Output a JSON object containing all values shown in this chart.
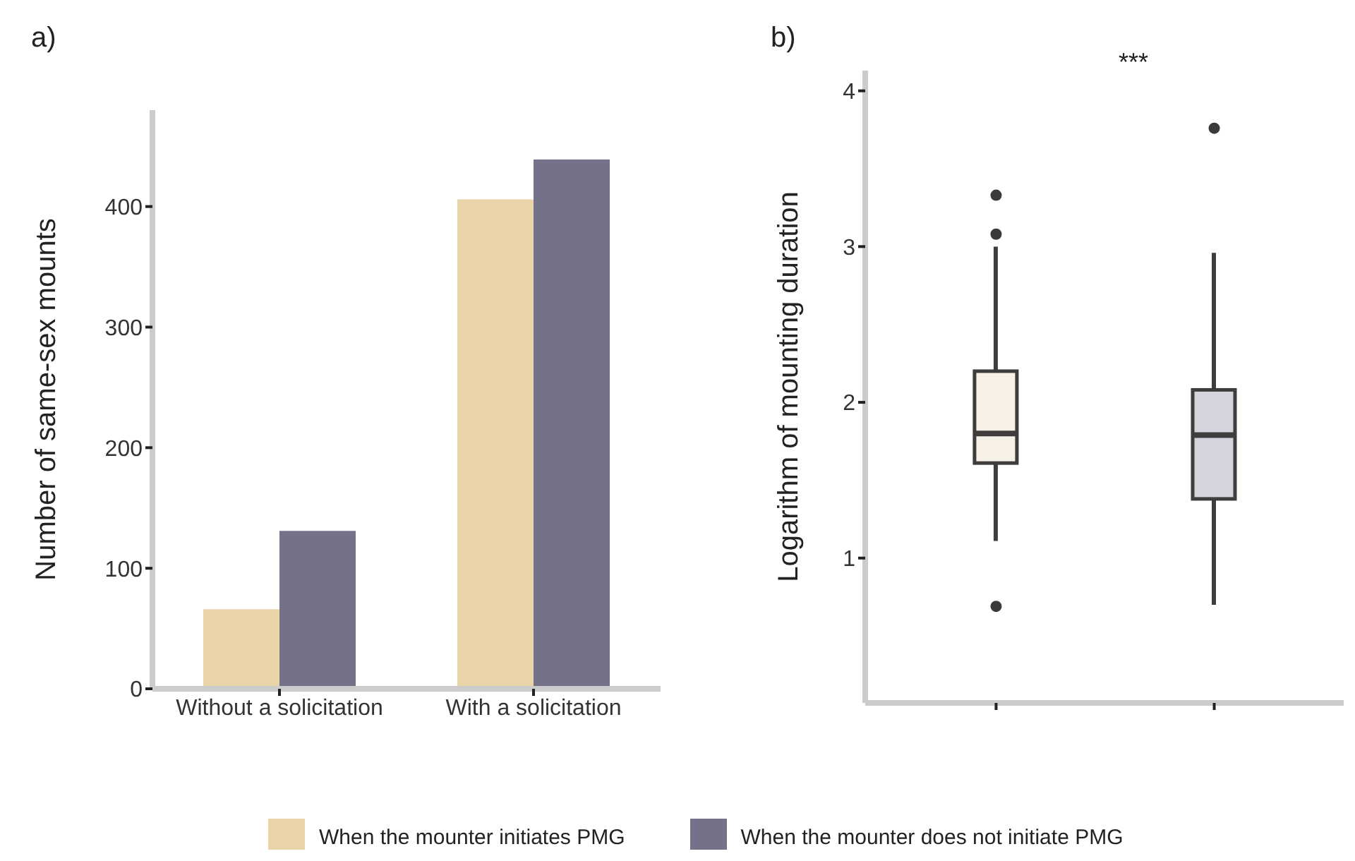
{
  "chart_data": [
    {
      "type": "bar",
      "title": "a)",
      "ylabel": "Number of same-sex mounts",
      "categories": [
        "Without a solicitation",
        "With a solicitation"
      ],
      "series": [
        {
          "name": "When the mounter initiates PMG",
          "color": "#e8d4a8",
          "values": [
            66,
            406
          ]
        },
        {
          "name": "When the mounter does not initiate PMG",
          "color": "#747289",
          "values": [
            131,
            439
          ]
        }
      ],
      "ylim": [
        0,
        480
      ],
      "yticks": [
        0,
        100,
        200,
        300,
        400
      ],
      "legend": "bottom",
      "grid": false
    },
    {
      "type": "box",
      "title": "b)",
      "ylabel": "Logarithm of mounting duration",
      "categories": [
        null,
        null
      ],
      "colors": [
        "#f6f1e4",
        "#d5d4df"
      ],
      "boxes": [
        {
          "low": 1.11,
          "q1": 1.61,
          "median": 1.8,
          "q3": 2.2,
          "high": 3.0,
          "outliers": [
            0.69,
            3.08,
            3.33
          ]
        },
        {
          "low": 0.7,
          "q1": 1.38,
          "median": 1.79,
          "q3": 2.08,
          "high": 2.96,
          "outliers": [
            3.76
          ]
        }
      ],
      "ylim": [
        0.07,
        4.13
      ],
      "yticks": [
        1,
        2,
        3,
        4
      ],
      "annotations": [
        "***"
      ],
      "grid": false
    }
  ]
}
